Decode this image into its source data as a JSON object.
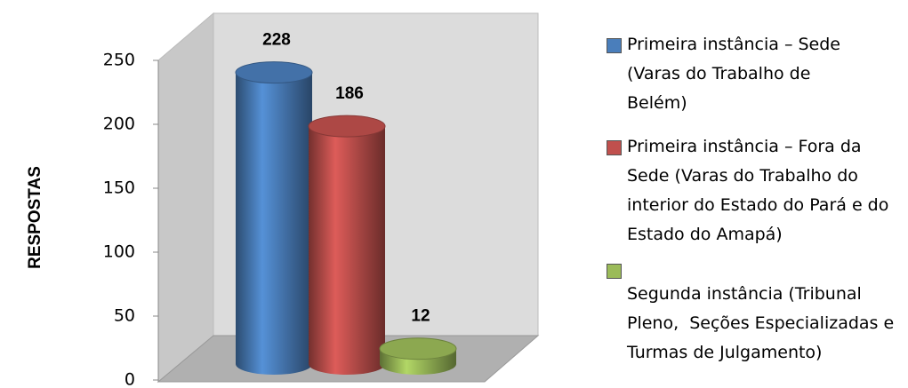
{
  "chart_data": {
    "type": "bar",
    "y_label": "RESPOSTAS",
    "categories": [
      null
    ],
    "series": [
      {
        "name": "Primeira instância – Sede (Varas do Trabalho de Belém)",
        "color": "#4a7ebb",
        "values": [
          228
        ]
      },
      {
        "name": "Primeira instância – Fora da Sede (Varas do Trabalho do interior do Estado do Pará e do Estado do Amapá)",
        "color": "#c0504d",
        "values": [
          186
        ]
      },
      {
        "name": "Segunda instância (Tribunal Pleno,  Seções Especializadas e Turmas de Julgamento)",
        "color": "#9bbb59",
        "values": [
          12
        ]
      }
    ],
    "ylim": [
      0,
      250
    ],
    "yticks": [
      0,
      50,
      100,
      150,
      200,
      250
    ],
    "legend": "right"
  }
}
